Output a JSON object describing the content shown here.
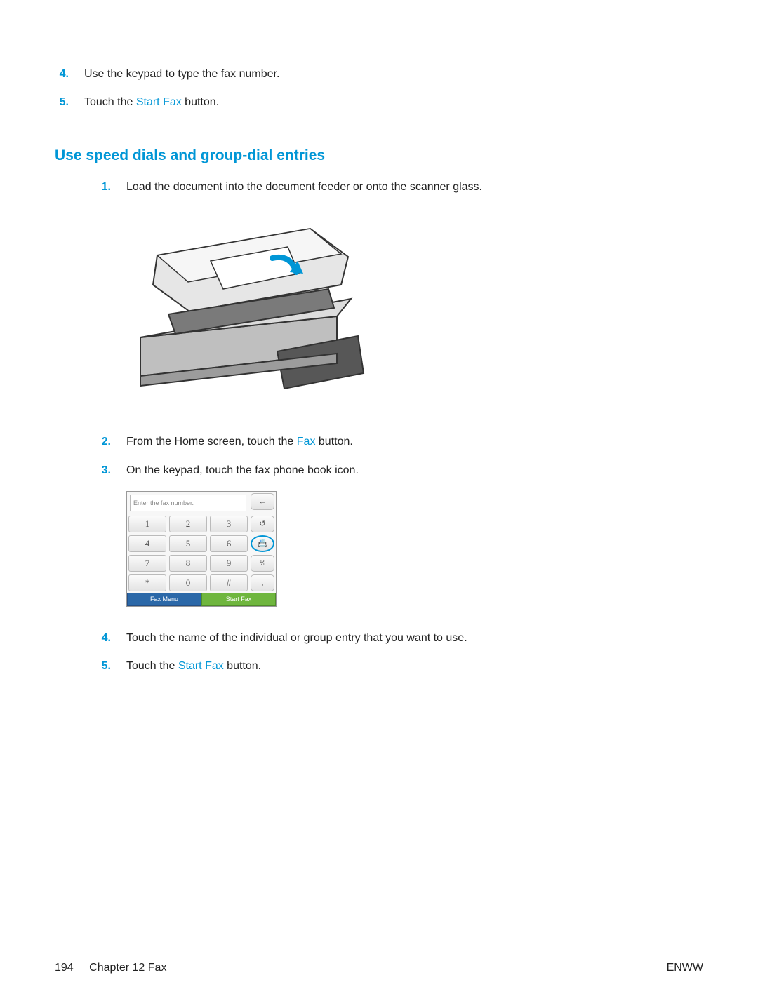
{
  "colors": {
    "accent": "#0096d6",
    "body_text": "#222222",
    "keypad_blue": "#2b68a8",
    "keypad_green": "#6fb63e"
  },
  "top_list": [
    {
      "num": "4.",
      "parts": [
        {
          "t": "Use the keypad to type the fax number."
        }
      ]
    },
    {
      "num": "5.",
      "parts": [
        {
          "t": "Touch the "
        },
        {
          "t": "Start Fax",
          "link": true
        },
        {
          "t": " button."
        }
      ]
    }
  ],
  "section_heading": "Use speed dials and group-dial entries",
  "steps": [
    {
      "num": "1.",
      "parts": [
        {
          "t": "Load the document into the document feeder or onto the scanner glass."
        }
      ]
    },
    {
      "num": "2.",
      "parts": [
        {
          "t": "From the Home screen, touch the "
        },
        {
          "t": "Fax",
          "link": true
        },
        {
          "t": " button."
        }
      ]
    },
    {
      "num": "3.",
      "parts": [
        {
          "t": "On the keypad, touch the fax phone book icon."
        }
      ]
    },
    {
      "num": "4.",
      "parts": [
        {
          "t": "Touch the name of the individual or group entry that you want to use."
        }
      ]
    },
    {
      "num": "5.",
      "parts": [
        {
          "t": "Touch the "
        },
        {
          "t": "Start Fax",
          "link": true
        },
        {
          "t": " button."
        }
      ]
    }
  ],
  "keypad": {
    "display_placeholder": "Enter the fax number.",
    "rows": [
      [
        "1",
        "2",
        "3"
      ],
      [
        "4",
        "5",
        "6"
      ],
      [
        "7",
        "8",
        "9"
      ],
      [
        "*",
        "0",
        "#"
      ]
    ],
    "side": [
      "←",
      "↺",
      "📇",
      "⅟ᵢᵢ",
      ","
    ],
    "bottom": {
      "left": "Fax Menu",
      "right": "Start Fax"
    }
  },
  "footer": {
    "page_number": "194",
    "chapter": "Chapter 12   Fax",
    "right": "ENWW"
  }
}
